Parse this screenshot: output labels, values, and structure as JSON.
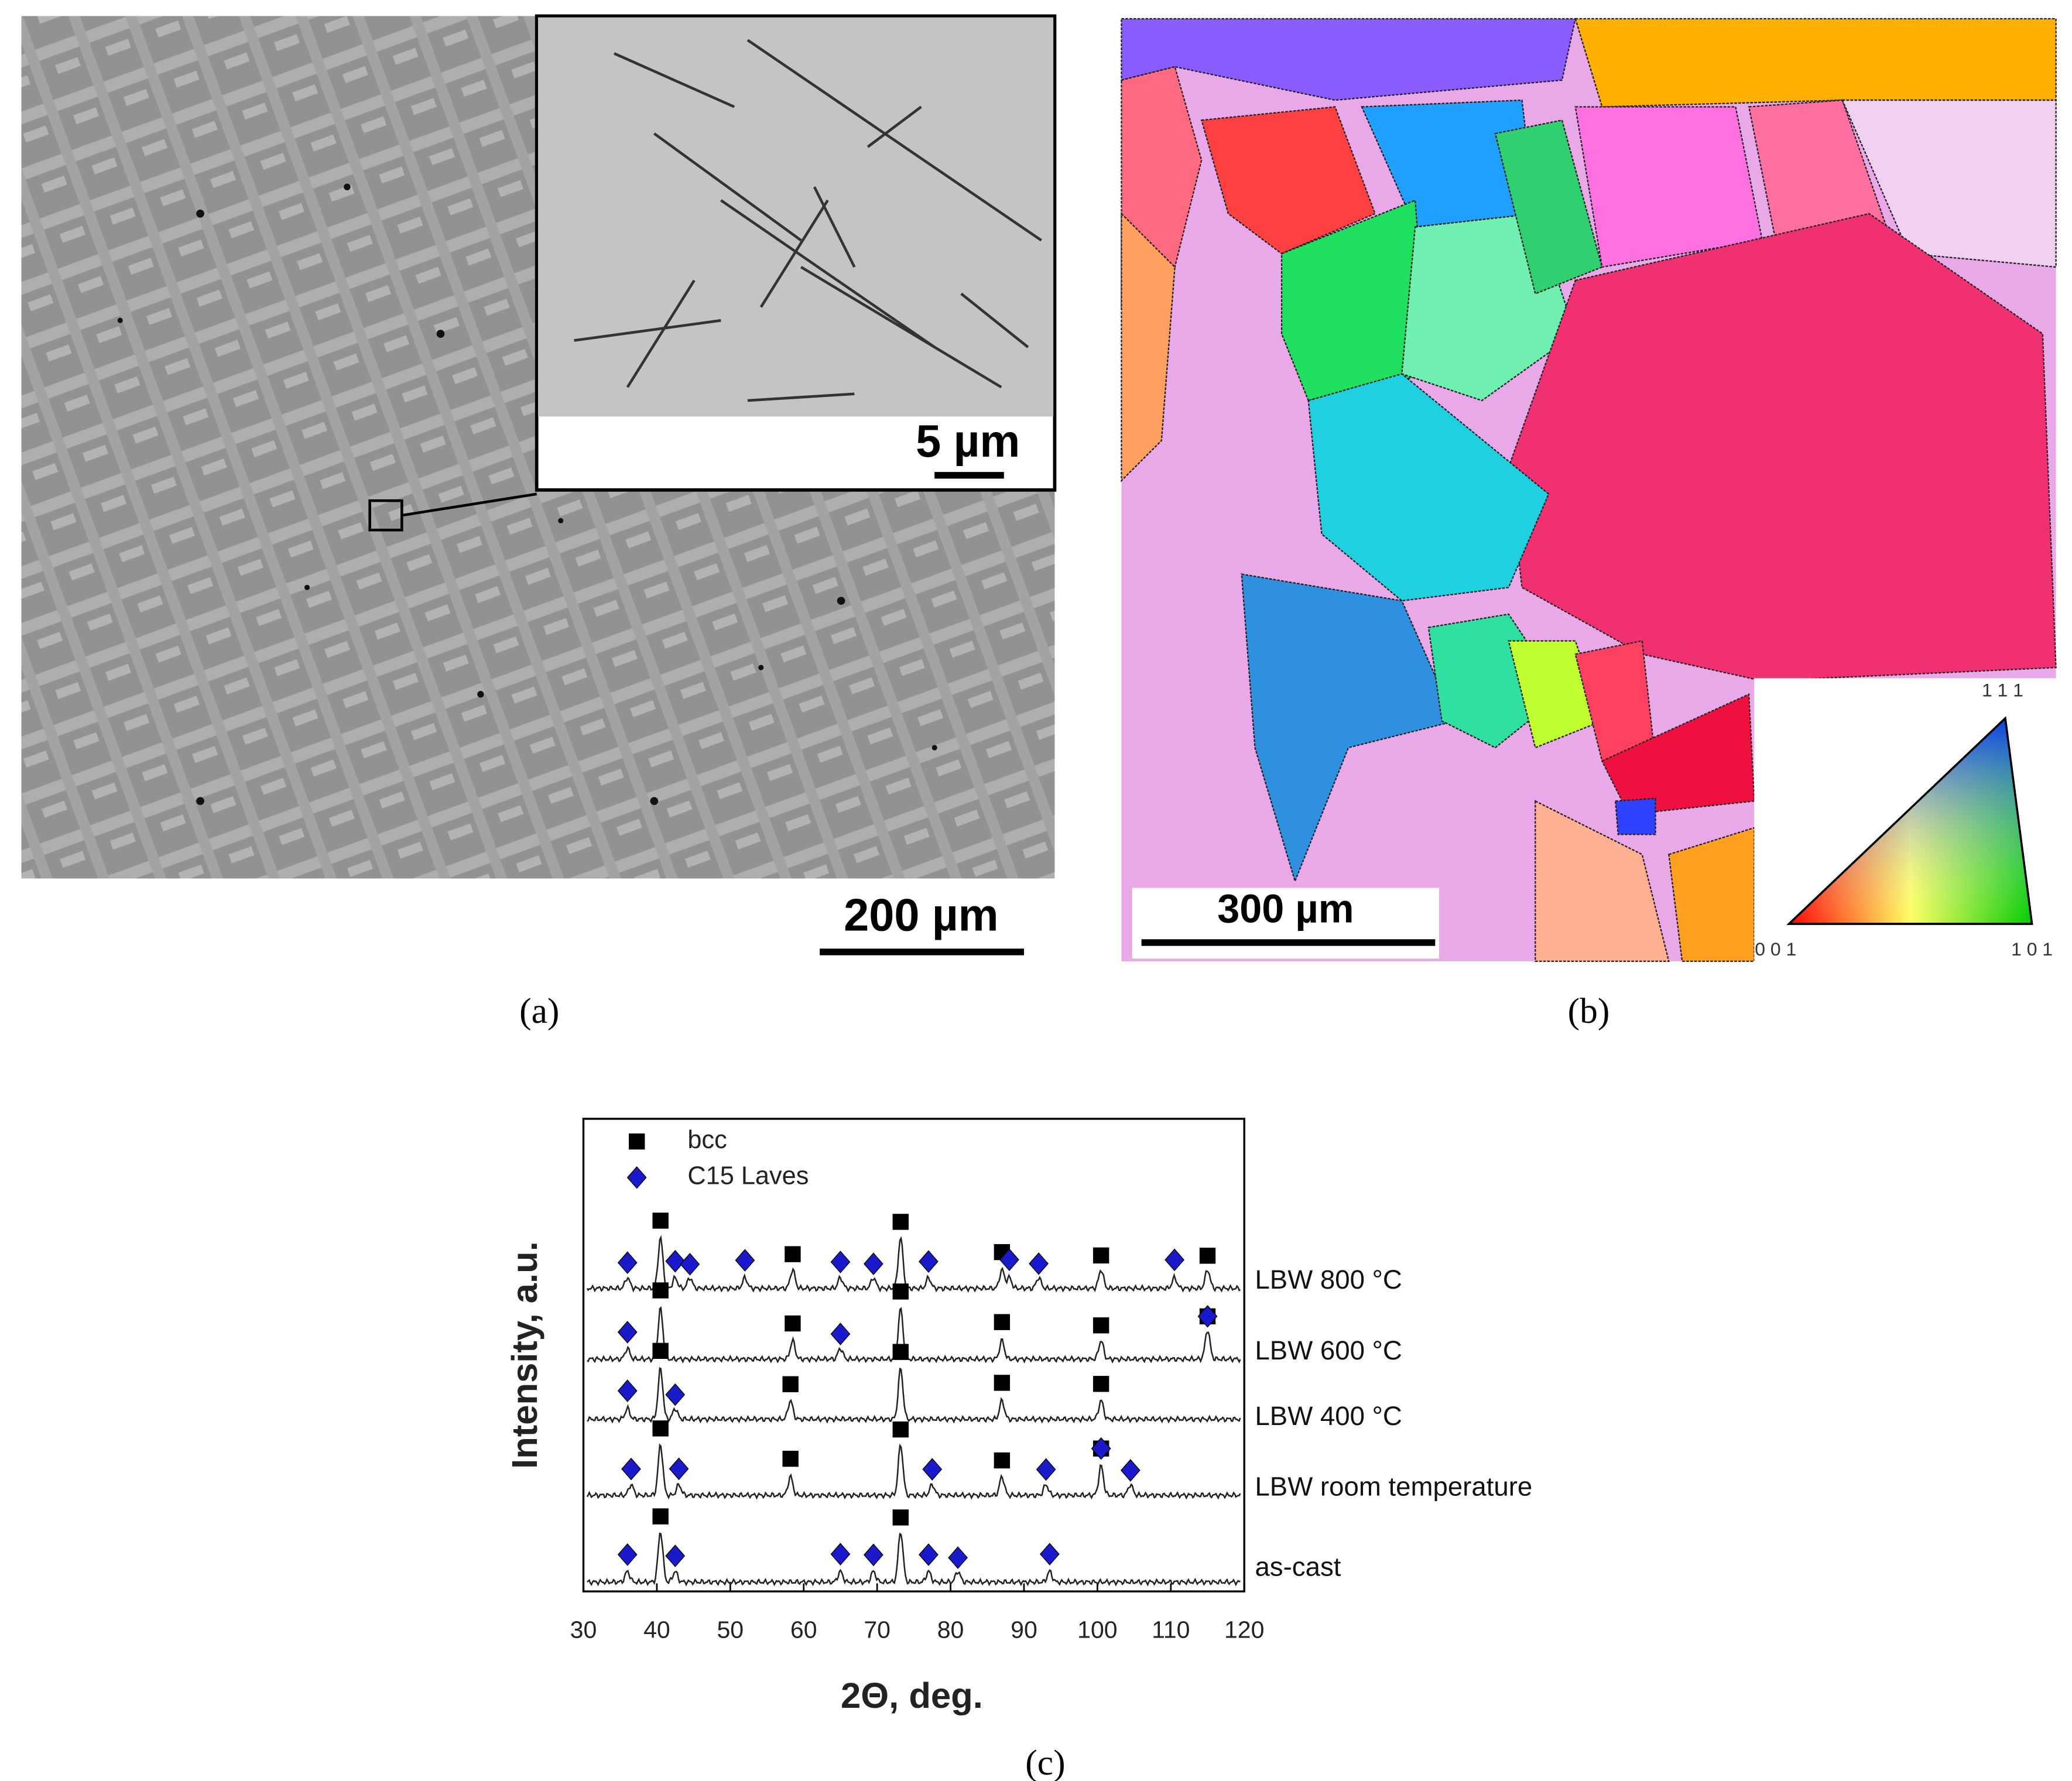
{
  "panels": [
    {
      "label": "(a)",
      "scale_bar": "200 µm",
      "inset_scale_bar": "5 µm"
    },
    {
      "label": "(b)",
      "scale_bar": "300 µm",
      "ipf_labels": [
        "0 0 1",
        "1 0 1",
        "1 1 1"
      ]
    }
  ],
  "chart_data": {
    "type": "xrd",
    "label": "(c)",
    "xlabel": "2Θ, deg.",
    "ylabel": "Intensity, a.u.",
    "xlim": [
      30,
      120
    ],
    "xticks": [
      30,
      40,
      50,
      60,
      70,
      80,
      90,
      100,
      110,
      120
    ],
    "series": [
      {
        "name": "bcc",
        "color": "#000000",
        "marker": "square"
      },
      {
        "name": "C15 Laves",
        "color": "#1a1acc",
        "marker": "diamond"
      }
    ],
    "patterns": [
      {
        "name": "LBW 800 °C",
        "peaks": [
          [
            40.5,
            58.5,
            73.2,
            87,
            100.5,
            115
          ],
          [
            36,
            42.5,
            44.5,
            52,
            65,
            69.5,
            77,
            88,
            92,
            110.5
          ]
        ]
      },
      {
        "name": "LBW 600 °C",
        "peaks": [
          [
            40.5,
            58.5,
            73.2,
            87,
            100.5,
            115
          ],
          [
            36,
            65,
            115
          ]
        ]
      },
      {
        "name": "LBW 400 °C",
        "peaks": [
          [
            40.5,
            58.2,
            73.2,
            87,
            100.5
          ],
          [
            36,
            42.5
          ]
        ]
      },
      {
        "name": "LBW room temperature",
        "peaks": [
          [
            40.5,
            58.2,
            73.2,
            87,
            100.5
          ],
          [
            36.5,
            43,
            77.5,
            93,
            100.5,
            104.5
          ]
        ]
      },
      {
        "name": "as-cast",
        "peaks": [
          [
            40.5,
            73.2
          ],
          [
            36,
            42.5,
            65,
            69.5,
            77,
            81,
            93.5
          ]
        ]
      }
    ]
  }
}
